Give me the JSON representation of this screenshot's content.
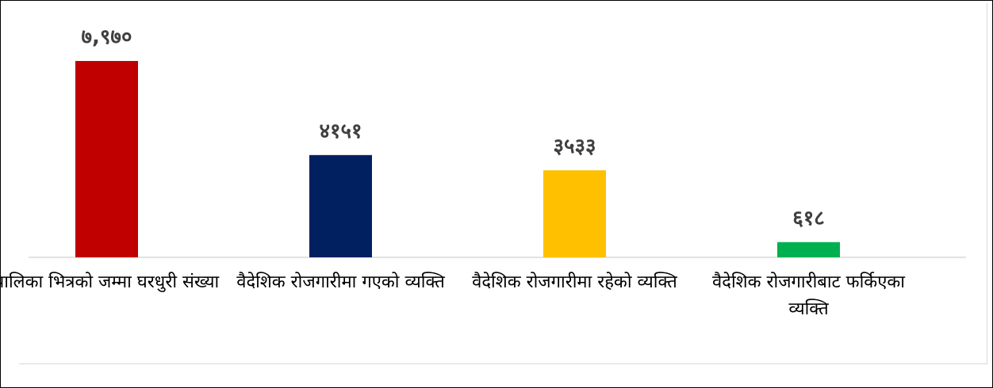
{
  "chart_data": {
    "type": "bar",
    "categories": [
      "पालिका भित्रको जम्मा घरधुरी संख्या",
      "वैदेशिक रोजगारीमा गएको व्यक्ति",
      "वैदेशिक रोजगारीमा रहेको व्यक्ति",
      "वैदेशिक रोजगारीबाट फर्किएका व्यक्ति"
    ],
    "values": [
      7970,
      4151,
      3533,
      618
    ],
    "data_labels": [
      "७,९७०",
      "४१५१",
      "३५३३",
      "६१८"
    ],
    "colors": [
      "#c00000",
      "#002060",
      "#ffc000",
      "#00b050"
    ],
    "ylim": [
      0,
      8000
    ],
    "grid": false,
    "legend": "none"
  }
}
